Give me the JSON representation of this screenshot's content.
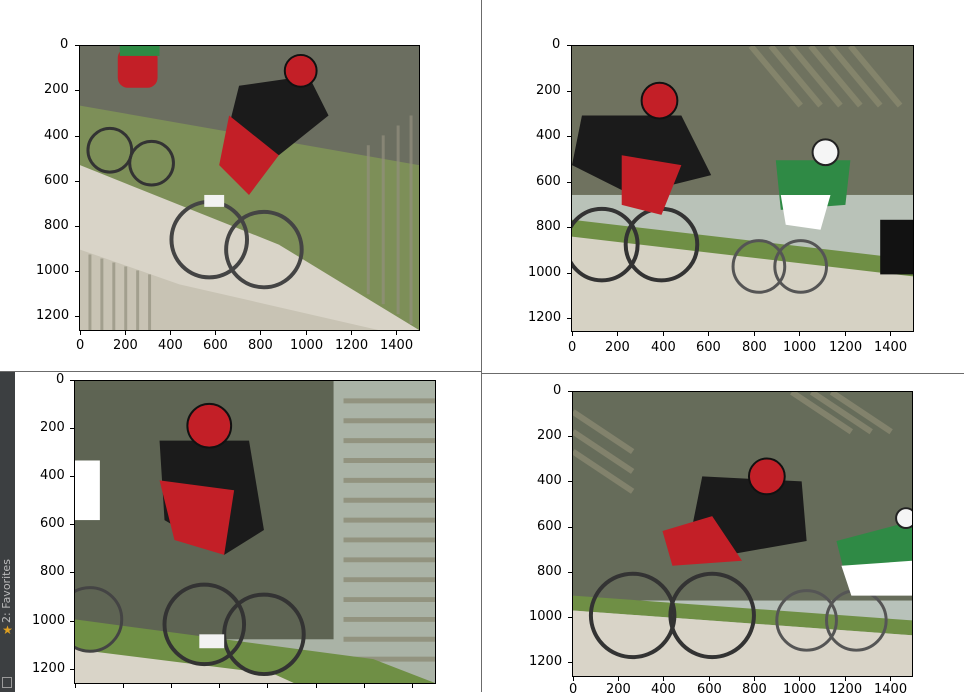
{
  "ide": {
    "favorites_label": "2: Favorites"
  },
  "icons": {
    "favorites": "star-icon",
    "panel": "panel-icon"
  },
  "colors": {
    "jersey_red": "#c31f27",
    "jersey_black": "#1b1b1b",
    "leader_green": "#2f8a45",
    "grass": "#6f8f45",
    "gravel": "#d9d4c8",
    "sky": "#b8c4bb"
  },
  "plots": [
    {
      "id": "top-left",
      "y_ticks": [
        "0",
        "200",
        "400",
        "600",
        "800",
        "1000",
        "1200"
      ],
      "x_ticks": [
        "0",
        "200",
        "400",
        "600",
        "800",
        "1000",
        "1200",
        "1400"
      ]
    },
    {
      "id": "top-right",
      "y_ticks": [
        "0",
        "200",
        "400",
        "600",
        "800",
        "1000",
        "1200"
      ],
      "x_ticks": [
        "0",
        "200",
        "400",
        "600",
        "800",
        "1000",
        "1200",
        "1400"
      ]
    },
    {
      "id": "bottom-left",
      "y_ticks": [
        "0",
        "200",
        "400",
        "600",
        "800",
        "1000",
        "1200"
      ],
      "x_ticks": []
    },
    {
      "id": "bottom-right",
      "y_ticks": [
        "0",
        "200",
        "400",
        "600",
        "800",
        "1000",
        "1200"
      ],
      "x_ticks": [
        "0",
        "200",
        "400",
        "600",
        "800",
        "1000",
        "1200",
        "1400"
      ]
    }
  ]
}
